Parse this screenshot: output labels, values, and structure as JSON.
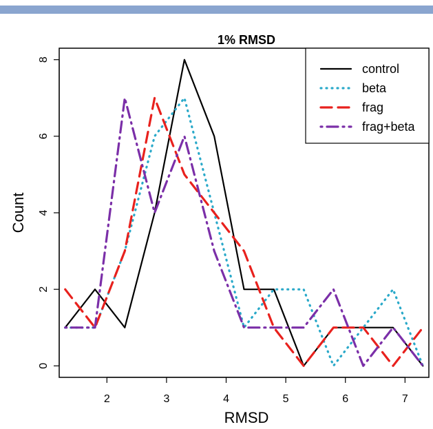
{
  "colors": {
    "header_stripe": "#8aa5cf"
  },
  "chart_data": {
    "type": "line",
    "title": "1% RMSD",
    "xlabel": "RMSD",
    "ylabel": "Count",
    "xlim": [
      1.2,
      7.4
    ],
    "ylim": [
      -0.3,
      8.3
    ],
    "xticks": [
      "2",
      "3",
      "4",
      "5",
      "6",
      "7"
    ],
    "xtick_values": [
      2,
      3,
      4,
      5,
      6,
      7
    ],
    "yticks": [
      "0",
      "2",
      "4",
      "6",
      "8"
    ],
    "ytick_values": [
      0,
      2,
      4,
      6,
      8
    ],
    "grid": false,
    "legend_position": "top-right",
    "x": [
      1.3,
      1.8,
      2.3,
      2.8,
      3.3,
      3.8,
      4.3,
      4.8,
      5.3,
      5.8,
      6.3,
      6.8,
      7.3
    ],
    "series": [
      {
        "name": "control",
        "color": "#000000",
        "dash": "solid",
        "values": [
          1,
          2,
          1,
          4,
          8,
          6,
          2,
          2,
          0,
          1,
          1,
          1,
          0
        ]
      },
      {
        "name": "beta",
        "color": "#2aa9c9",
        "dash": "dotted",
        "values": [
          1,
          1,
          3,
          6,
          7,
          4,
          1,
          2,
          2,
          0,
          1,
          2,
          0
        ]
      },
      {
        "name": "frag",
        "color": "#e8211d",
        "dash": "dashed",
        "values": [
          2,
          1,
          3,
          7,
          5,
          4,
          3,
          1,
          0,
          1,
          1,
          0,
          1
        ]
      },
      {
        "name": "frag+beta",
        "color": "#7b2fa8",
        "dash": "dotdash",
        "values": [
          1,
          1,
          7,
          4,
          6,
          3,
          1,
          1,
          1,
          2,
          0,
          1,
          0
        ]
      }
    ]
  }
}
